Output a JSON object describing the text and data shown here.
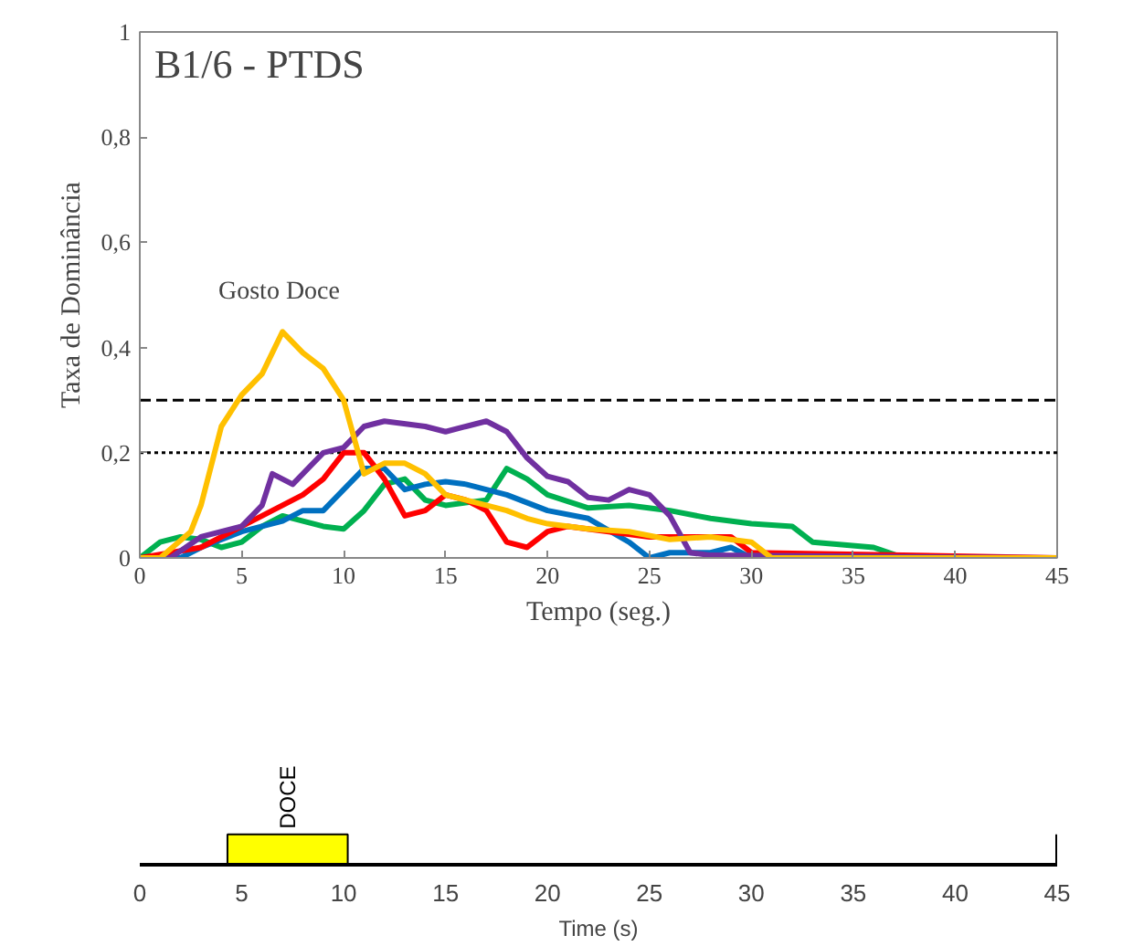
{
  "chart_data": [
    {
      "type": "line",
      "title": "B1/6 - PTDS",
      "xlabel": "Tempo (seg.)",
      "ylabel": "Taxa de Dominância",
      "annotations": [
        "Gosto Doce"
      ],
      "xlim": [
        0,
        45
      ],
      "xticks": [
        0,
        5,
        10,
        15,
        20,
        25,
        30,
        35,
        40,
        45
      ],
      "ylim": [
        0,
        1
      ],
      "yticks": [
        0,
        {
          "value": 0.2,
          "label": "0,2"
        },
        {
          "value": 0.4,
          "label": "0,4"
        },
        {
          "value": 0.6,
          "label": "0,6"
        },
        {
          "value": 0.8,
          "label": "0,8"
        },
        1
      ],
      "grid": false,
      "line_style": "solid",
      "marker": "none",
      "ref_lines": [
        {
          "axis": "y",
          "value": 0.3,
          "label": null,
          "color": "#000000",
          "line_style": "dashed"
        },
        {
          "axis": "y",
          "value": 0.2,
          "label": null,
          "color": "#000000",
          "line_style": "dotted"
        }
      ],
      "series": [
        {
          "color": "#00b050",
          "x": [
            0,
            1,
            2,
            3,
            4,
            5,
            6,
            7,
            8,
            9,
            10,
            11,
            12,
            13,
            14,
            15,
            17,
            18,
            19,
            20,
            22,
            24,
            26,
            28,
            30,
            32,
            33,
            36,
            37.5,
            45
          ],
          "values": [
            0,
            0.03,
            0.04,
            0.035,
            0.02,
            0.03,
            0.06,
            0.08,
            0.07,
            0.06,
            0.055,
            0.09,
            0.14,
            0.15,
            0.11,
            0.1,
            0.11,
            0.17,
            0.15,
            0.12,
            0.095,
            0.1,
            0.09,
            0.075,
            0.065,
            0.06,
            0.03,
            0.02,
            0,
            0
          ]
        },
        {
          "color": "#0070c0",
          "x": [
            0,
            2,
            3,
            5,
            7,
            8,
            9,
            10,
            11,
            12,
            13,
            14,
            15,
            16,
            18,
            20,
            22,
            24,
            25,
            26,
            28,
            29,
            30,
            45
          ],
          "values": [
            0,
            0,
            0.02,
            0.05,
            0.07,
            0.09,
            0.09,
            0.13,
            0.17,
            0.17,
            0.13,
            0.14,
            0.145,
            0.14,
            0.12,
            0.09,
            0.075,
            0.03,
            0,
            0.01,
            0.01,
            0.02,
            0,
            0
          ]
        },
        {
          "color": "#ff0000",
          "x": [
            0,
            3,
            5,
            7,
            8,
            9,
            10,
            11,
            12,
            13,
            14,
            15,
            16,
            17,
            18,
            19,
            20,
            21,
            25,
            29,
            30,
            45
          ],
          "values": [
            0,
            0.02,
            0.06,
            0.1,
            0.12,
            0.15,
            0.2,
            0.2,
            0.15,
            0.08,
            0.09,
            0.12,
            0.11,
            0.09,
            0.03,
            0.02,
            0.05,
            0.06,
            0.04,
            0.04,
            0.01,
            0
          ]
        },
        {
          "color": "#7030a0",
          "x": [
            0,
            1.5,
            3,
            5,
            6,
            6.5,
            7.5,
            9,
            10,
            11,
            12,
            14,
            15,
            16,
            17,
            18,
            19,
            20,
            21,
            22,
            23,
            24,
            25,
            26,
            27,
            28,
            45
          ],
          "values": [
            0,
            0,
            0.04,
            0.06,
            0.1,
            0.16,
            0.14,
            0.2,
            0.21,
            0.25,
            0.26,
            0.25,
            0.24,
            0.25,
            0.26,
            0.24,
            0.19,
            0.155,
            0.145,
            0.115,
            0.11,
            0.13,
            0.12,
            0.08,
            0.01,
            0.005,
            0
          ]
        },
        {
          "color": "#ffc000",
          "x": [
            0,
            1,
            2.5,
            3,
            4,
            5,
            6,
            7,
            8,
            9,
            10,
            11,
            12,
            13,
            14,
            15,
            16,
            17,
            18,
            19,
            20,
            22,
            24,
            26,
            28,
            30,
            31,
            45
          ],
          "values": [
            0,
            0,
            0.05,
            0.1,
            0.25,
            0.31,
            0.35,
            0.43,
            0.39,
            0.36,
            0.3,
            0.16,
            0.18,
            0.18,
            0.16,
            0.12,
            0.11,
            0.1,
            0.09,
            0.075,
            0.065,
            0.055,
            0.05,
            0.035,
            0.04,
            0.03,
            0,
            0
          ]
        }
      ]
    },
    {
      "type": "bar",
      "orientation": "horizontal",
      "xlabel": "Time (s)",
      "categories": [
        "DOCE"
      ],
      "values": [
        5.9
      ],
      "base": [
        4.3
      ],
      "colors": [
        "#ffff00"
      ],
      "xlim": [
        0,
        45
      ],
      "xticks": [
        0,
        5,
        10,
        15,
        20,
        25,
        30,
        35,
        40,
        45
      ],
      "tick_labels": "x",
      "grid": false
    }
  ]
}
